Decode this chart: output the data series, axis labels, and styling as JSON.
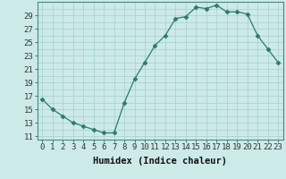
{
  "x": [
    0,
    1,
    2,
    3,
    4,
    5,
    6,
    7,
    8,
    9,
    10,
    11,
    12,
    13,
    14,
    15,
    16,
    17,
    18,
    19,
    20,
    21,
    22,
    23
  ],
  "y": [
    16.5,
    15.0,
    14.0,
    13.0,
    12.5,
    12.0,
    11.5,
    11.5,
    16.0,
    19.5,
    22.0,
    24.5,
    26.0,
    28.5,
    28.8,
    30.2,
    30.0,
    30.5,
    29.5,
    29.5,
    29.2,
    26.0,
    24.0,
    22.0
  ],
  "xlabel": "Humidex (Indice chaleur)",
  "ylim": [
    10.5,
    31
  ],
  "xlim": [
    -0.5,
    23.5
  ],
  "yticks": [
    11,
    13,
    15,
    17,
    19,
    21,
    23,
    25,
    27,
    29
  ],
  "xticks": [
    0,
    1,
    2,
    3,
    4,
    5,
    6,
    7,
    8,
    9,
    10,
    11,
    12,
    13,
    14,
    15,
    16,
    17,
    18,
    19,
    20,
    21,
    22,
    23
  ],
  "line_color": "#2d7a6b",
  "marker": "D",
  "marker_size": 2.5,
  "bg_color": "#cceae8",
  "grid_color": "#aad4d0",
  "xlabel_fontsize": 7.5,
  "tick_fontsize": 6.5,
  "spine_color": "#4a8a80"
}
